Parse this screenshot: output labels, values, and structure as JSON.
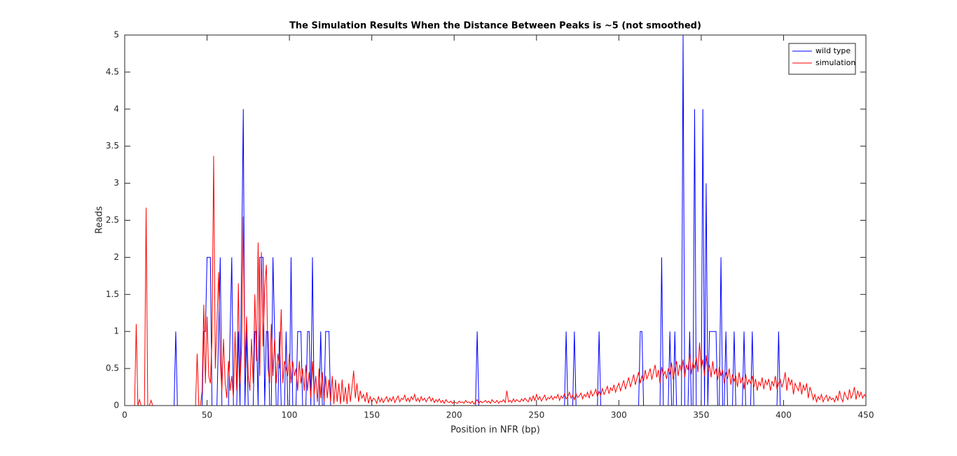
{
  "chart_data": {
    "type": "line",
    "title": "The Simulation Results When the Distance Between Peaks is ~5 (not smoothed)",
    "xlabel": "Position in NFR (bp)",
    "ylabel": "Reads",
    "xlim": [
      0,
      450
    ],
    "xticks": [
      0,
      50,
      100,
      150,
      200,
      250,
      300,
      350,
      400,
      450
    ],
    "ylim": [
      0,
      5
    ],
    "yticks": [
      0,
      0.5,
      1,
      1.5,
      2,
      2.5,
      3,
      3.5,
      4,
      4.5,
      5
    ],
    "legend": "northeast",
    "box": true,
    "x": [
      0,
      1,
      2,
      3,
      4,
      5,
      6,
      7,
      8,
      9,
      10,
      11,
      12,
      13,
      14,
      15,
      16,
      17,
      18,
      19,
      20,
      21,
      22,
      23,
      24,
      25,
      26,
      27,
      28,
      29,
      30,
      31,
      32,
      33,
      34,
      35,
      36,
      37,
      38,
      39,
      40,
      41,
      42,
      43,
      44,
      45,
      46,
      47,
      48,
      49,
      50,
      51,
      52,
      53,
      54,
      55,
      56,
      57,
      58,
      59,
      60,
      61,
      62,
      63,
      64,
      65,
      66,
      67,
      68,
      69,
      70,
      71,
      72,
      73,
      74,
      75,
      76,
      77,
      78,
      79,
      80,
      81,
      82,
      83,
      84,
      85,
      86,
      87,
      88,
      89,
      90,
      91,
      92,
      93,
      94,
      95,
      96,
      97,
      98,
      99,
      100,
      101,
      102,
      103,
      104,
      105,
      106,
      107,
      108,
      109,
      110,
      111,
      112,
      113,
      114,
      115,
      116,
      117,
      118,
      119,
      120,
      121,
      122,
      123,
      124,
      125,
      126,
      127,
      128,
      129,
      130,
      131,
      132,
      133,
      134,
      135,
      136,
      137,
      138,
      139,
      140,
      141,
      142,
      143,
      144,
      145,
      146,
      147,
      148,
      149,
      150,
      151,
      152,
      153,
      154,
      155,
      156,
      157,
      158,
      159,
      160,
      161,
      162,
      163,
      164,
      165,
      166,
      167,
      168,
      169,
      170,
      171,
      172,
      173,
      174,
      175,
      176,
      177,
      178,
      179,
      180,
      181,
      182,
      183,
      184,
      185,
      186,
      187,
      188,
      189,
      190,
      191,
      192,
      193,
      194,
      195,
      196,
      197,
      198,
      199,
      200,
      201,
      202,
      203,
      204,
      205,
      206,
      207,
      208,
      209,
      210,
      211,
      212,
      213,
      214,
      215,
      216,
      217,
      218,
      219,
      220,
      221,
      222,
      223,
      224,
      225,
      226,
      227,
      228,
      229,
      230,
      231,
      232,
      233,
      234,
      235,
      236,
      237,
      238,
      239,
      240,
      241,
      242,
      243,
      244,
      245,
      246,
      247,
      248,
      249,
      250,
      251,
      252,
      253,
      254,
      255,
      256,
      257,
      258,
      259,
      260,
      261,
      262,
      263,
      264,
      265,
      266,
      267,
      268,
      269,
      270,
      271,
      272,
      273,
      274,
      275,
      276,
      277,
      278,
      279,
      280,
      281,
      282,
      283,
      284,
      285,
      286,
      287,
      288,
      289,
      290,
      291,
      292,
      293,
      294,
      295,
      296,
      297,
      298,
      299,
      300,
      301,
      302,
      303,
      304,
      305,
      306,
      307,
      308,
      309,
      310,
      311,
      312,
      313,
      314,
      315,
      316,
      317,
      318,
      319,
      320,
      321,
      322,
      323,
      324,
      325,
      326,
      327,
      328,
      329,
      330,
      331,
      332,
      333,
      334,
      335,
      336,
      337,
      338,
      339,
      340,
      341,
      342,
      343,
      344,
      345,
      346,
      347,
      348,
      349,
      350,
      351,
      352,
      353,
      354,
      355,
      356,
      357,
      358,
      359,
      360,
      361,
      362,
      363,
      364,
      365,
      366,
      367,
      368,
      369,
      370,
      371,
      372,
      373,
      374,
      375,
      376,
      377,
      378,
      379,
      380,
      381,
      382,
      383,
      384,
      385,
      386,
      387,
      388,
      389,
      390,
      391,
      392,
      393,
      394,
      395,
      396,
      397,
      398,
      399,
      400,
      401,
      402,
      403,
      404,
      405,
      406,
      407,
      408,
      409,
      410,
      411,
      412,
      413,
      414,
      415,
      416,
      417,
      418,
      419,
      420,
      421,
      422,
      423,
      424,
      425,
      426,
      427,
      428,
      429,
      430,
      431,
      432,
      433,
      434,
      435,
      436,
      437,
      438,
      439,
      440,
      441,
      442,
      443,
      444,
      445,
      446,
      447,
      448,
      449,
      450
    ],
    "series": [
      {
        "name": "wild type",
        "color": "#0000ff",
        "values": [
          0,
          0,
          0,
          0,
          0,
          0,
          0,
          0,
          0,
          0,
          0,
          0,
          0,
          0,
          0,
          0,
          0,
          0,
          0,
          0,
          0,
          0,
          0,
          0,
          0,
          0,
          0,
          0,
          0,
          0,
          0,
          1,
          0,
          0,
          0,
          0,
          0,
          0,
          0,
          0,
          0,
          0,
          0,
          0,
          0,
          0,
          0,
          0,
          1,
          1,
          2,
          2,
          2,
          0,
          0,
          0,
          0,
          1,
          2,
          0,
          0,
          0,
          0,
          0,
          1,
          2,
          0,
          0,
          0,
          1,
          0,
          2,
          4,
          0,
          1,
          0,
          0,
          0,
          0,
          1,
          1,
          0,
          2,
          2,
          2,
          0,
          1,
          1,
          0,
          0,
          2,
          1,
          0,
          0,
          1,
          0,
          0,
          0,
          1,
          0,
          0,
          2,
          0,
          0,
          0,
          1,
          1,
          1,
          0,
          0,
          0,
          1,
          1,
          0,
          2,
          0,
          0,
          0,
          0,
          1,
          0,
          0,
          1,
          1,
          1,
          0,
          0,
          0,
          0,
          0,
          0,
          0,
          0,
          0,
          0,
          0,
          0,
          0,
          0,
          0,
          0,
          0,
          0,
          0,
          0,
          0,
          0,
          0,
          0,
          0,
          0,
          0,
          0,
          0,
          0,
          0,
          0,
          0,
          0,
          0,
          0,
          0,
          0,
          0,
          0,
          0,
          0,
          0,
          0,
          0,
          0,
          0,
          0,
          0,
          0,
          0,
          0,
          0,
          0,
          0,
          0,
          0,
          0,
          0,
          0,
          0,
          0,
          0,
          0,
          0,
          0,
          0,
          0,
          0,
          0,
          0,
          0,
          0,
          0,
          0,
          0,
          0,
          0,
          0,
          0,
          0,
          0,
          0,
          0,
          0,
          0,
          0,
          0,
          0,
          1,
          0,
          0,
          0,
          0,
          0,
          0,
          0,
          0,
          0,
          0,
          0,
          0,
          0,
          0,
          0,
          0,
          0,
          0,
          0,
          0,
          0,
          0,
          0,
          0,
          0,
          0,
          0,
          0,
          0,
          0,
          0,
          0,
          0,
          0,
          0,
          0,
          0,
          0,
          0,
          0,
          0,
          0,
          0,
          0,
          0,
          0,
          0,
          0,
          0,
          0,
          0,
          0,
          0,
          1,
          0,
          0,
          0,
          0,
          1,
          0,
          0,
          0,
          0,
          0,
          0,
          0,
          0,
          0,
          0,
          0,
          0,
          0,
          0,
          1,
          0,
          0,
          0,
          0,
          0,
          0,
          0,
          0,
          0,
          0,
          0,
          0,
          0,
          0,
          0,
          0,
          0,
          0,
          0,
          0,
          0,
          0,
          0,
          0,
          1,
          1,
          0,
          0,
          0,
          0,
          0,
          0,
          0,
          0,
          0,
          0,
          0,
          2,
          0,
          0,
          0,
          0,
          1,
          0,
          0,
          1,
          0,
          0,
          0,
          0,
          5,
          0,
          0,
          0,
          1,
          0,
          0,
          4,
          0,
          0,
          0,
          0,
          4,
          0,
          3,
          0,
          1,
          1,
          1,
          1,
          1,
          0,
          0,
          2,
          0,
          0,
          1,
          0,
          0,
          0,
          0,
          1,
          0,
          0,
          0,
          0,
          0,
          1,
          0,
          0,
          0,
          0,
          1,
          0,
          0,
          0,
          0,
          0,
          0,
          0,
          0,
          0,
          0,
          0,
          0,
          0,
          0,
          0,
          1,
          0,
          0,
          0,
          0,
          0,
          0,
          0,
          0,
          0,
          0,
          0,
          0,
          0,
          0,
          0,
          0,
          0,
          0,
          0,
          0,
          0,
          0,
          0,
          0,
          0,
          0,
          0,
          0,
          0,
          0,
          0,
          0,
          0,
          0,
          0,
          0,
          0,
          0,
          0,
          0,
          0,
          0,
          0,
          0,
          0,
          0,
          0,
          0,
          0,
          0,
          0,
          0,
          0
        ]
      },
      {
        "name": "simulation",
        "color": "#ff0000",
        "values": [
          0,
          0,
          0,
          0,
          0,
          0,
          0,
          1.1,
          0,
          0.08,
          0,
          0,
          0,
          2.67,
          0,
          0,
          0.07,
          0,
          0,
          0,
          0,
          0,
          0,
          0,
          0,
          0,
          0,
          0,
          0,
          0,
          0,
          0,
          0,
          0,
          0,
          0,
          0,
          0,
          0,
          0,
          0,
          0,
          0,
          0,
          0.7,
          0,
          0,
          0.2,
          1.36,
          0.3,
          1.2,
          0.4,
          0.3,
          0.9,
          3.37,
          0.5,
          1.1,
          1.8,
          0.6,
          0.2,
          0.9,
          0.3,
          0.1,
          0.6,
          0.2,
          0.4,
          0.1,
          1.0,
          0.2,
          1.65,
          0.3,
          0.8,
          2.55,
          0.5,
          1.2,
          0.4,
          0.2,
          0.9,
          0.3,
          1.5,
          0.6,
          2.2,
          0.4,
          2.07,
          0.8,
          1.6,
          1.9,
          0.5,
          0.3,
          1.1,
          0.4,
          0.9,
          0.3,
          0.7,
          0.5,
          1.3,
          0.3,
          0.6,
          0.5,
          0.4,
          0.7,
          0.3,
          0.6,
          0.4,
          0.5,
          0.2,
          0.6,
          0.3,
          0.5,
          0.2,
          0.55,
          0.2,
          0.45,
          0.1,
          0.6,
          0.15,
          0.4,
          0.05,
          0.5,
          0.1,
          0.45,
          0.05,
          0.4,
          0.1,
          0.35,
          0.05,
          0.4,
          0.02,
          0.35,
          0.05,
          0.3,
          0.02,
          0.35,
          0.05,
          0.25,
          0.02,
          0.3,
          0.05,
          0.25,
          0.47,
          0.1,
          0.3,
          0.05,
          0.2,
          0.1,
          0.15,
          0.05,
          0.18,
          0.03,
          0.12,
          0.05,
          0.1,
          0.08,
          0.03,
          0.12,
          0.05,
          0.1,
          0.04,
          0.08,
          0.12,
          0.05,
          0.1,
          0.06,
          0.12,
          0.04,
          0.09,
          0.13,
          0.05,
          0.1,
          0.08,
          0.14,
          0.06,
          0.1,
          0.05,
          0.12,
          0.08,
          0.15,
          0.06,
          0.1,
          0.05,
          0.12,
          0.07,
          0.1,
          0.05,
          0.09,
          0.12,
          0.06,
          0.1,
          0.04,
          0.08,
          0.05,
          0.09,
          0.04,
          0.07,
          0.03,
          0.08,
          0.05,
          0.04,
          0.06,
          0.03,
          0.05,
          0.04,
          0.03,
          0.06,
          0.04,
          0.05,
          0.03,
          0.07,
          0.04,
          0.05,
          0.03,
          0.06,
          0.02,
          0.05,
          0.08,
          0.03,
          0.06,
          0.04,
          0.05,
          0.07,
          0.04,
          0.06,
          0.03,
          0.08,
          0.05,
          0.04,
          0.07,
          0.03,
          0.06,
          0.05,
          0.08,
          0.04,
          0.2,
          0.05,
          0.07,
          0.04,
          0.09,
          0.05,
          0.08,
          0.06,
          0.05,
          0.09,
          0.06,
          0.1,
          0.07,
          0.05,
          0.11,
          0.06,
          0.13,
          0.07,
          0.15,
          0.08,
          0.12,
          0.06,
          0.1,
          0.14,
          0.07,
          0.11,
          0.09,
          0.13,
          0.08,
          0.12,
          0.1,
          0.15,
          0.07,
          0.13,
          0.1,
          0.16,
          0.09,
          0.12,
          0.18,
          0.1,
          0.14,
          0.08,
          0.16,
          0.11,
          0.13,
          0.17,
          0.09,
          0.15,
          0.12,
          0.18,
          0.1,
          0.2,
          0.13,
          0.16,
          0.22,
          0.12,
          0.19,
          0.14,
          0.23,
          0.15,
          0.2,
          0.26,
          0.16,
          0.24,
          0.2,
          0.28,
          0.18,
          0.25,
          0.3,
          0.2,
          0.27,
          0.34,
          0.22,
          0.3,
          0.38,
          0.25,
          0.33,
          0.42,
          0.28,
          0.37,
          0.45,
          0.3,
          0.4,
          0.33,
          0.48,
          0.36,
          0.42,
          0.5,
          0.35,
          0.45,
          0.55,
          0.38,
          0.48,
          0.3,
          0.52,
          0.4,
          0.46,
          0.36,
          0.5,
          0.42,
          0.58,
          0.35,
          0.48,
          0.6,
          0.4,
          0.55,
          0.45,
          0.62,
          0.38,
          0.55,
          0.48,
          0.7,
          0.42,
          0.58,
          0.5,
          0.65,
          0.45,
          0.85,
          0.5,
          0.62,
          0.4,
          0.68,
          0.45,
          0.55,
          0.38,
          0.6,
          0.42,
          0.5,
          0.35,
          0.52,
          0.4,
          0.48,
          0.3,
          0.45,
          0.36,
          0.5,
          0.28,
          0.42,
          0.33,
          0.4,
          0.25,
          0.45,
          0.3,
          0.38,
          0.22,
          0.42,
          0.28,
          0.35,
          0.3,
          0.4,
          0.25,
          0.36,
          0.2,
          0.32,
          0.27,
          0.38,
          0.22,
          0.34,
          0.28,
          0.36,
          0.2,
          0.33,
          0.26,
          0.4,
          0.22,
          0.3,
          0.35,
          0.25,
          0.32,
          0.45,
          0.2,
          0.38,
          0.28,
          0.35,
          0.15,
          0.3,
          0.25,
          0.2,
          0.32,
          0.15,
          0.28,
          0.2,
          0.3,
          0.1,
          0.25,
          0.18,
          0.08,
          0.15,
          0.05,
          0.12,
          0.08,
          0.15,
          0.05,
          0.1,
          0.14,
          0.06,
          0.12,
          0.08,
          0.1,
          0.05,
          0.13,
          0.07,
          0.2,
          0.1,
          0.05,
          0.18,
          0.12,
          0.08,
          0.22,
          0.1,
          0.15,
          0.25,
          0.08,
          0.2,
          0.12,
          0.18,
          0.1,
          0.15,
          0.12
        ]
      }
    ]
  }
}
